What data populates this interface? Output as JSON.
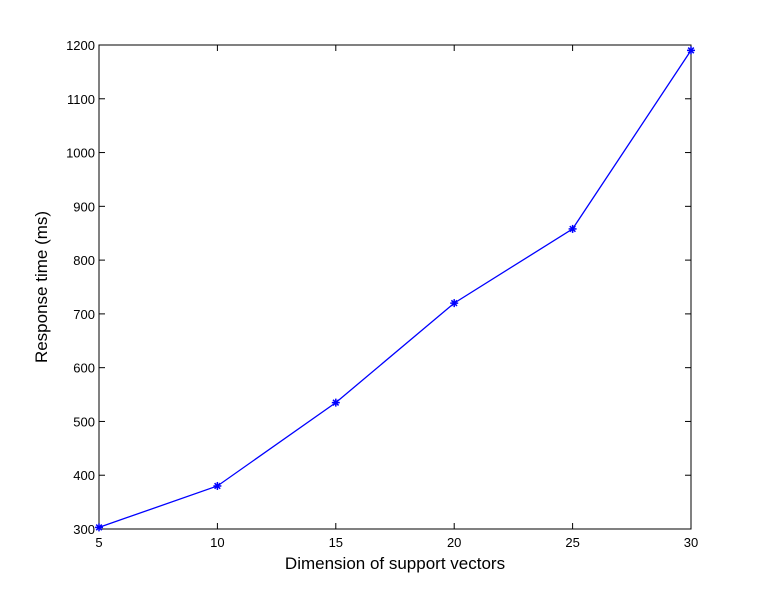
{
  "chart_data": {
    "type": "line",
    "title": "",
    "xlabel": "Dimension of support vectors",
    "ylabel": "Response time (ms)",
    "xlim": [
      5,
      30
    ],
    "ylim": [
      300,
      1200
    ],
    "xticks": [
      5,
      10,
      15,
      20,
      25,
      30
    ],
    "yticks": [
      300,
      400,
      500,
      600,
      700,
      800,
      900,
      1000,
      1100,
      1200
    ],
    "grid": false,
    "legend": "none",
    "series": [
      {
        "color": "#0000ff",
        "marker": "star",
        "x": [
          5,
          10,
          15,
          20,
          25,
          30
        ],
        "y": [
          303,
          380,
          535,
          720,
          858,
          1190
        ]
      }
    ]
  }
}
